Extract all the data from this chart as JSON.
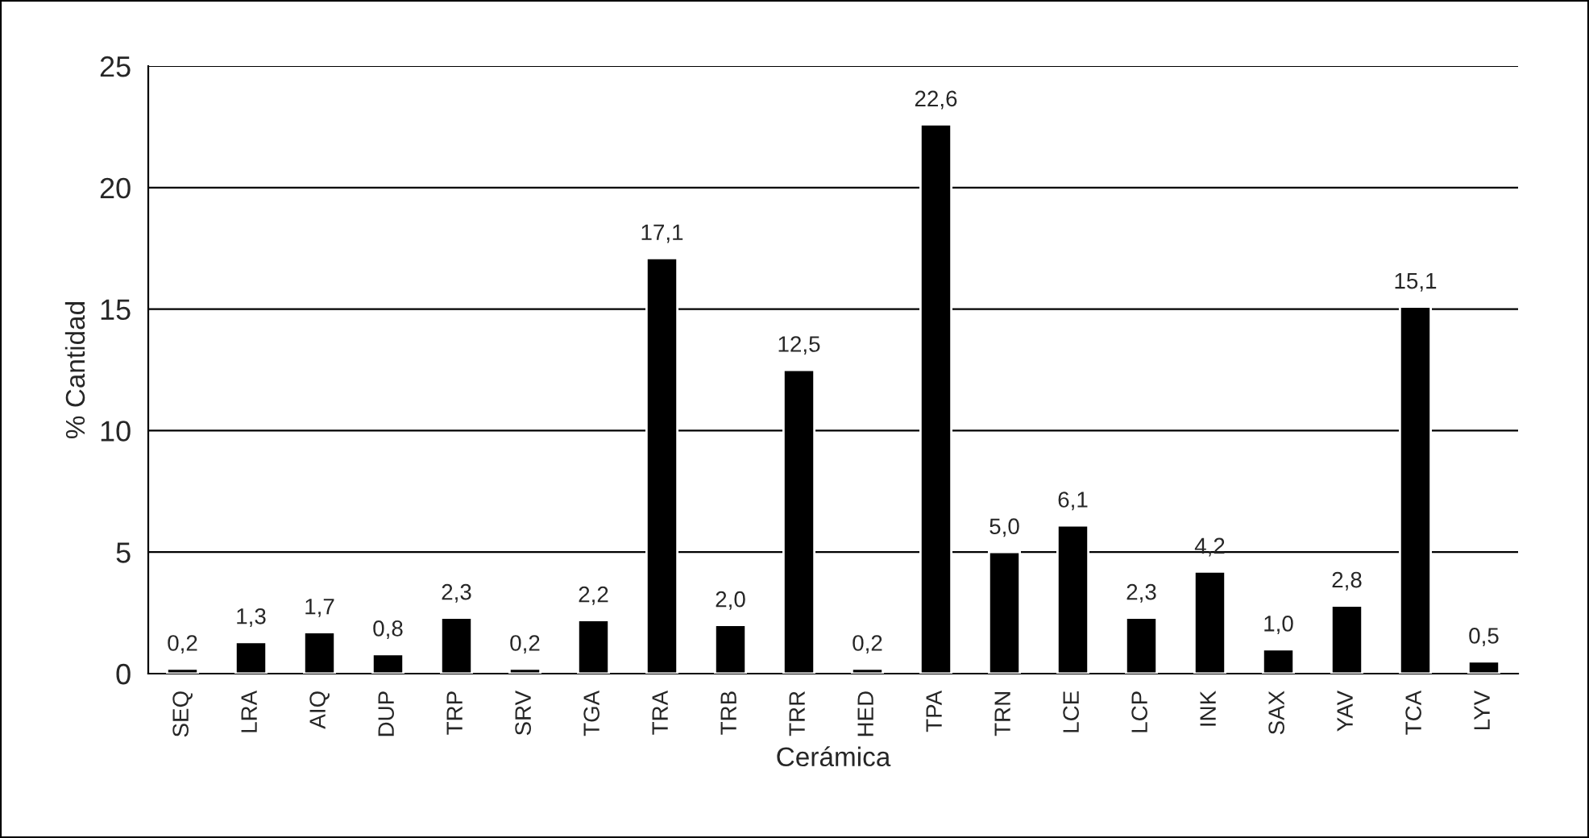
{
  "chart_data": {
    "type": "bar",
    "xlabel": "Cerámica",
    "ylabel": "% Cantidad",
    "categories": [
      "SEQ",
      "LRA",
      "AIQ",
      "DUP",
      "TRP",
      "SRV",
      "TGA",
      "TRA",
      "TRB",
      "TRR",
      "HED",
      "TPA",
      "TRN",
      "LCE",
      "LCP",
      "INK",
      "SAX",
      "YAV",
      "TCA",
      "LYV"
    ],
    "values": [
      0.2,
      1.3,
      1.7,
      0.8,
      2.3,
      0.2,
      2.2,
      17.1,
      2.0,
      12.5,
      0.2,
      22.6,
      5.0,
      6.1,
      2.3,
      4.2,
      1.0,
      2.8,
      15.1,
      0.5
    ],
    "value_labels": [
      "0,2",
      "1,3",
      "1,7",
      "0,8",
      "2,3",
      "0,2",
      "2,2",
      "17,1",
      "2,0",
      "12,5",
      "0,2",
      "22,6",
      "5,0",
      "6,1",
      "2,3",
      "4,2",
      "1,0",
      "2,8",
      "15,1",
      "0,5"
    ],
    "color": "#000000",
    "ylim": [
      0,
      25
    ],
    "yticks": [
      0,
      5,
      10,
      15,
      20,
      25
    ],
    "grid": "y"
  }
}
